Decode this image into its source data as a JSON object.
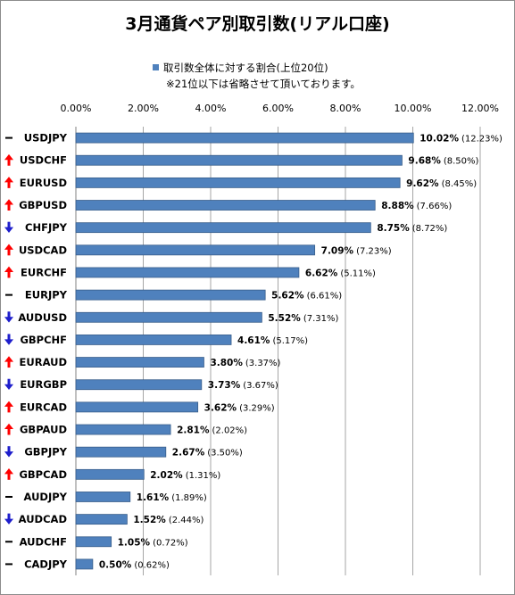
{
  "chart_data": {
    "type": "bar",
    "orientation": "horizontal",
    "title": "3月通貨ペア別取引数(リアル口座)",
    "legend": {
      "entry": "取引数全体に対する割合(上位20位)",
      "note": "※21位以下は省略させて頂いております。",
      "placement": "top"
    },
    "xlim": [
      0,
      12
    ],
    "x_ticks": [
      "0.00%",
      "2.00%",
      "4.00%",
      "6.00%",
      "8.00%",
      "10.00%",
      "12.00%"
    ],
    "x_tick_values": [
      0,
      2,
      4,
      6,
      8,
      10,
      12
    ],
    "grid": "vertical",
    "bar_color": "#4f81bd",
    "trend_colors": {
      "up": "#ff0000",
      "down": "#1f1fcc",
      "same": "#000000"
    },
    "categories": [
      "USDJPY",
      "USDCHF",
      "EURUSD",
      "GBPUSD",
      "CHFJPY",
      "USDCAD",
      "EURCHF",
      "EURJPY",
      "AUDUSD",
      "GBPCHF",
      "EURAUD",
      "EURGBP",
      "EURCAD",
      "GBPAUD",
      "GBPJPY",
      "GBPCAD",
      "AUDJPY",
      "AUDCAD",
      "AUDCHF",
      "CADJPY"
    ],
    "values": [
      10.02,
      9.68,
      9.62,
      8.88,
      8.75,
      7.09,
      6.62,
      5.62,
      5.52,
      4.61,
      3.8,
      3.73,
      3.62,
      2.81,
      2.67,
      2.02,
      1.61,
      1.52,
      1.05,
      0.5
    ],
    "value_labels": [
      "10.02%",
      "9.68%",
      "9.62%",
      "8.88%",
      "8.75%",
      "7.09%",
      "6.62%",
      "5.62%",
      "5.52%",
      "4.61%",
      "3.80%",
      "3.73%",
      "3.62%",
      "2.81%",
      "2.67%",
      "2.02%",
      "1.61%",
      "1.52%",
      "1.05%",
      "0.50%"
    ],
    "previous_labels": [
      "(12.23%)",
      "(8.50%)",
      "(8.45%)",
      "(7.66%)",
      "(8.72%)",
      "(7.23%)",
      "(5.11%)",
      "(6.61%)",
      "(7.31%)",
      "(5.17%)",
      "(3.37%)",
      "(3.67%)",
      "(3.29%)",
      "(2.02%)",
      "(3.50%)",
      "(1.31%)",
      "(1.89%)",
      "(2.44%)",
      "(0.72%)",
      "(0.62%)"
    ],
    "trends": [
      "same",
      "up",
      "up",
      "up",
      "down",
      "up",
      "up",
      "same",
      "down",
      "down",
      "up",
      "down",
      "up",
      "up",
      "down",
      "up",
      "same",
      "down",
      "same",
      "same"
    ]
  }
}
